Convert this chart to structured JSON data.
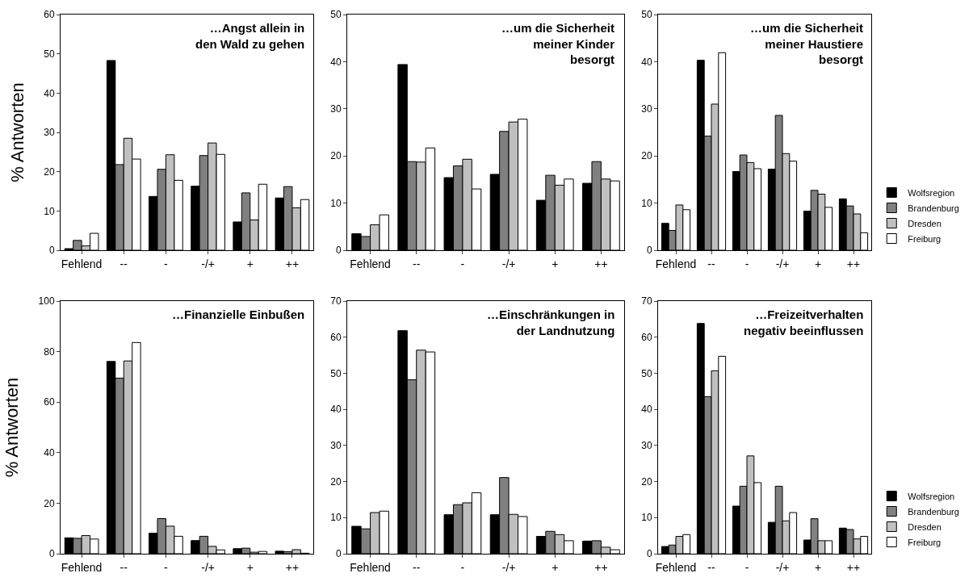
{
  "chart_data": [
    {
      "type": "bar",
      "title": "…Angst allein in\nden Wald zu gehen",
      "ylabel": "% Antworten",
      "categories": [
        "Fehlend",
        "--",
        "-",
        "-/+",
        "+",
        "++"
      ],
      "ylim": [
        0,
        60
      ],
      "yticks": [
        0,
        10,
        20,
        30,
        40,
        50,
        60
      ],
      "grid": false,
      "legend": false,
      "series": [
        {
          "color": "#000000",
          "values": [
            0.4,
            48.3,
            13.7,
            16.3,
            7.2,
            13.3
          ]
        },
        {
          "color": "#808080",
          "values": [
            2.5,
            21.8,
            20.6,
            24.1,
            14.6,
            16.2
          ]
        },
        {
          "color": "#c0c0c0",
          "values": [
            1.1,
            28.5,
            24.3,
            27.3,
            7.7,
            10.8
          ]
        },
        {
          "color": "#ffffff",
          "values": [
            4.3,
            23.2,
            17.8,
            24.4,
            16.8,
            12.9
          ]
        }
      ]
    },
    {
      "type": "bar",
      "title": "…um die Sicherheit\nmeiner Kinder\nbesorgt",
      "categories": [
        "Fehlend",
        "--",
        "-",
        "-/+",
        "+",
        "++"
      ],
      "ylim": [
        0,
        50
      ],
      "yticks": [
        0,
        10,
        20,
        30,
        40,
        50
      ],
      "grid": false,
      "legend": false,
      "series": [
        {
          "color": "#000000",
          "values": [
            3.5,
            39.4,
            15.4,
            16.1,
            10.6,
            14.2
          ]
        },
        {
          "color": "#808080",
          "values": [
            2.9,
            18.8,
            17.9,
            25.2,
            15.9,
            18.8
          ]
        },
        {
          "color": "#c0c0c0",
          "values": [
            5.4,
            18.7,
            19.3,
            27.2,
            13.8,
            15.1
          ]
        },
        {
          "color": "#ffffff",
          "values": [
            7.5,
            21.7,
            13.0,
            27.8,
            15.1,
            14.7
          ]
        }
      ]
    },
    {
      "type": "bar",
      "title": "…um die Sicherheit\nmeiner Haustiere\nbesorgt",
      "categories": [
        "Fehlend",
        "--",
        "-",
        "-/+",
        "+",
        "++"
      ],
      "ylim": [
        0,
        50
      ],
      "yticks": [
        0,
        10,
        20,
        30,
        40,
        50
      ],
      "grid": false,
      "legend": "right",
      "series": [
        {
          "name": "Wolfsregion",
          "color": "#000000",
          "values": [
            5.7,
            40.3,
            16.7,
            17.2,
            8.3,
            10.9
          ]
        },
        {
          "name": "Brandenburg",
          "color": "#808080",
          "values": [
            4.2,
            24.2,
            20.2,
            28.6,
            12.7,
            9.4
          ]
        },
        {
          "name": "Dresden",
          "color": "#c0c0c0",
          "values": [
            9.6,
            31.0,
            18.6,
            20.5,
            11.9,
            7.7
          ]
        },
        {
          "name": "Freiburg",
          "color": "#ffffff",
          "values": [
            8.6,
            41.9,
            17.3,
            18.9,
            9.1,
            3.7
          ]
        }
      ]
    },
    {
      "type": "bar",
      "title": "…Finanzielle Einbußen",
      "ylabel": "% Antworten",
      "categories": [
        "Fehlend",
        "--",
        "-",
        "-/+",
        "+",
        "++"
      ],
      "ylim": [
        0,
        100
      ],
      "yticks": [
        0,
        20,
        40,
        60,
        80,
        100
      ],
      "grid": false,
      "legend": false,
      "series": [
        {
          "color": "#000000",
          "values": [
            6.3,
            76.1,
            8.1,
            5.2,
            2.0,
            1.0
          ]
        },
        {
          "color": "#808080",
          "values": [
            6.1,
            69.5,
            13.9,
            6.9,
            2.2,
            0.8
          ]
        },
        {
          "color": "#c0c0c0",
          "values": [
            7.2,
            76.3,
            10.9,
            2.9,
            0.6,
            1.6
          ]
        },
        {
          "color": "#ffffff",
          "values": [
            5.8,
            83.6,
            6.9,
            1.5,
            0.9,
            0.2
          ]
        }
      ]
    },
    {
      "type": "bar",
      "title": "…Einschränkungen in\nder Landnutzung",
      "categories": [
        "Fehlend",
        "--",
        "-",
        "-/+",
        "+",
        "++"
      ],
      "ylim": [
        0,
        70
      ],
      "yticks": [
        0,
        10,
        20,
        30,
        40,
        50,
        60,
        70
      ],
      "grid": false,
      "legend": false,
      "series": [
        {
          "color": "#000000",
          "values": [
            7.6,
            61.8,
            10.8,
            10.8,
            4.8,
            3.5
          ]
        },
        {
          "color": "#808080",
          "values": [
            6.9,
            48.2,
            13.6,
            21.1,
            6.2,
            3.6
          ]
        },
        {
          "color": "#c0c0c0",
          "values": [
            11.4,
            56.4,
            14.1,
            10.9,
            5.3,
            1.8
          ]
        },
        {
          "color": "#ffffff",
          "values": [
            11.8,
            55.9,
            16.9,
            10.3,
            3.6,
            1.1
          ]
        }
      ]
    },
    {
      "type": "bar",
      "title": "…Freizeitverhalten\nnegativ beeinflussen",
      "categories": [
        "Fehlend",
        "--",
        "-",
        "-/+",
        "+",
        "++"
      ],
      "ylim": [
        0,
        70
      ],
      "yticks": [
        0,
        10,
        20,
        30,
        40,
        50,
        60,
        70
      ],
      "grid": false,
      "legend": "right",
      "series": [
        {
          "name": "Wolfsregion",
          "color": "#000000",
          "values": [
            2.0,
            63.8,
            13.2,
            8.7,
            3.8,
            7.1
          ]
        },
        {
          "name": "Brandenburg",
          "color": "#808080",
          "values": [
            2.4,
            43.5,
            18.7,
            18.7,
            9.7,
            6.7
          ]
        },
        {
          "name": "Dresden",
          "color": "#c0c0c0",
          "values": [
            4.8,
            50.7,
            27.1,
            9.1,
            3.6,
            4.1
          ]
        },
        {
          "name": "Freiburg",
          "color": "#ffffff",
          "values": [
            5.3,
            54.7,
            19.7,
            11.4,
            3.6,
            4.8
          ]
        }
      ]
    }
  ]
}
